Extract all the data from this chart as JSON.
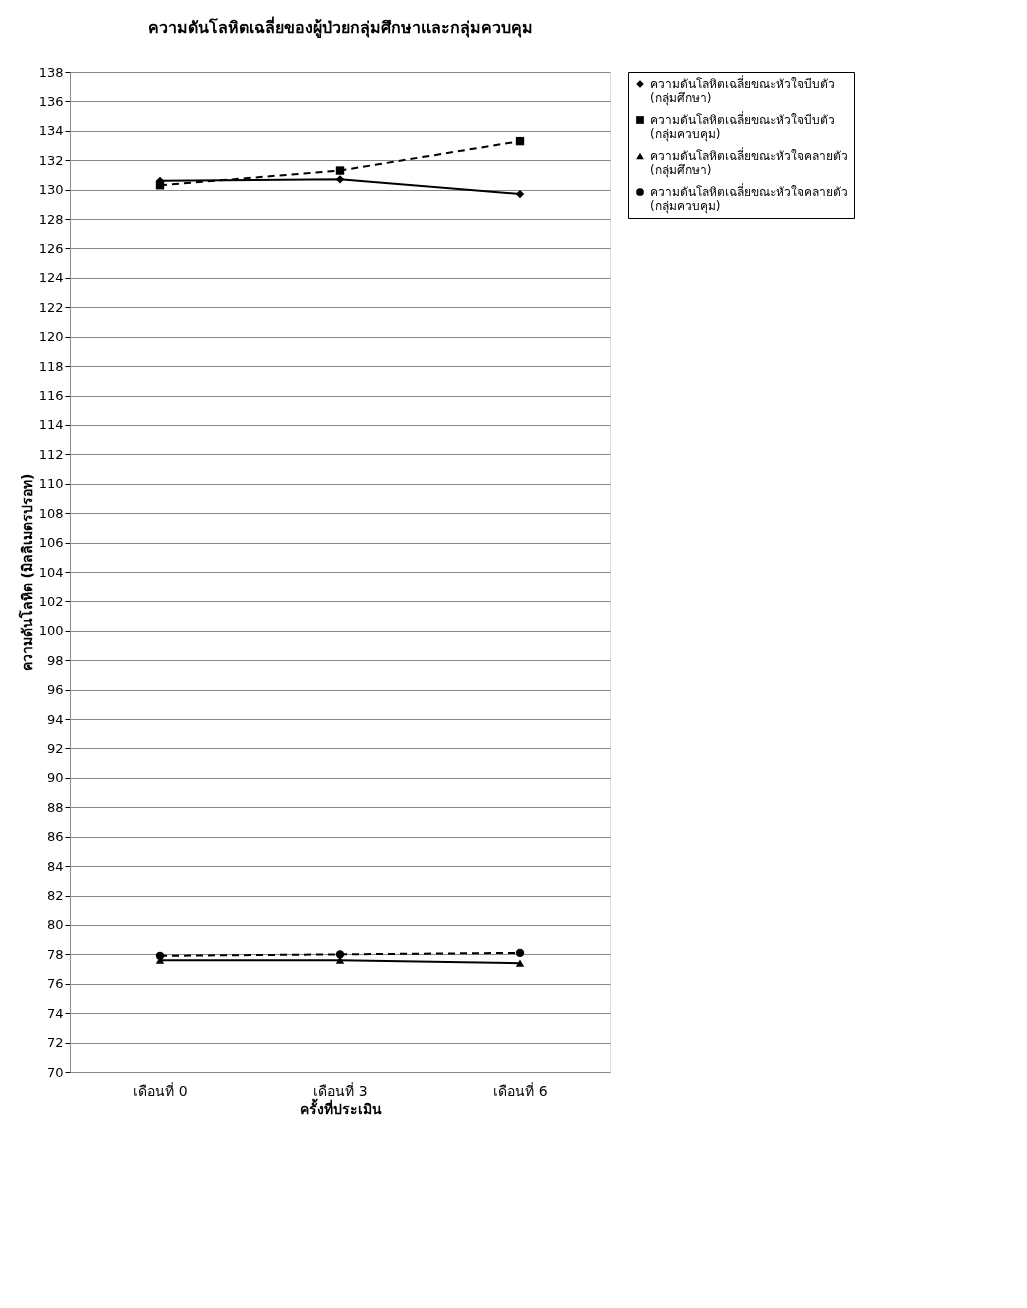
{
  "chart_data": {
    "type": "line",
    "title": "ความดันโลหิตเฉลี่ยของผู้ป่วยกลุ่มศึกษาและกลุ่มควบคุม",
    "xlabel": "ครั้งที่ประเมิน",
    "ylabel": "ความดันโลหิต (มิลลิเมตรปรอท)",
    "categories": [
      "เดือนที่ 0",
      "เดือนที่ 3",
      "เดือนที่ 6"
    ],
    "series": [
      {
        "name": "ความดันโลหิตเฉลี่ยขณะหัวใจบีบตัว (กลุ่มศึกษา)",
        "color": "#000000",
        "marker": "diamond",
        "line_style": "solid",
        "values": [
          130.6,
          130.7,
          129.7
        ]
      },
      {
        "name": "ความดันโลหิตเฉลี่ยขณะหัวใจบีบตัว (กลุ่มควบคุม)",
        "color": "#000000",
        "marker": "square",
        "line_style": "dashed",
        "values": [
          130.3,
          131.3,
          133.3
        ]
      },
      {
        "name": "ความดันโลหิตเฉลี่ยขณะหัวใจคลายตัว (กลุ่มศึกษา)",
        "color": "#000000",
        "marker": "triangle",
        "line_style": "solid",
        "values": [
          77.6,
          77.6,
          77.4
        ]
      },
      {
        "name": "ความดันโลหิตเฉลี่ยขณะหัวใจคลายตัว (กลุ่มควบคุม)",
        "color": "#000000",
        "marker": "circle",
        "line_style": "dashed",
        "values": [
          77.9,
          78.0,
          78.1
        ]
      }
    ],
    "ylim": [
      70,
      138
    ],
    "yticks": [
      70,
      72,
      74,
      76,
      78,
      80,
      82,
      84,
      86,
      88,
      90,
      92,
      94,
      96,
      98,
      100,
      102,
      104,
      106,
      108,
      110,
      112,
      114,
      116,
      118,
      120,
      122,
      124,
      126,
      128,
      130,
      132,
      134,
      136,
      138
    ],
    "grid": "y",
    "legend": "right"
  }
}
